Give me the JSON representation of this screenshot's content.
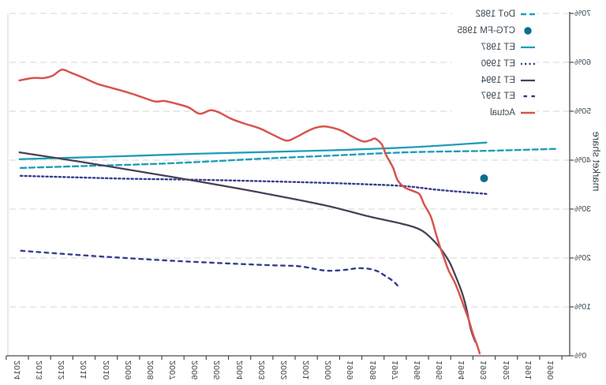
{
  "chart_data": {
    "type": "line",
    "title": "",
    "xlabel": "",
    "ylabel": "market share",
    "orientation": "horizontally-mirrored",
    "legend_position": "top-left",
    "grid": "horizontal-dashed",
    "xlim": [
      1989.1,
      2014.6
    ],
    "ylim": [
      0,
      70
    ],
    "x_ticks": [
      1990,
      1991,
      1992,
      1993,
      1994,
      1995,
      1996,
      1997,
      1998,
      1999,
      2000,
      2001,
      2002,
      2003,
      2004,
      2005,
      2006,
      2007,
      2008,
      2009,
      2010,
      2011,
      2012,
      2013,
      2014
    ],
    "y_ticks_pct": [
      0,
      10,
      20,
      30,
      40,
      50,
      60,
      70
    ],
    "y_tick_labels": [
      "0%",
      "10%",
      "20%",
      "30%",
      "40%",
      "50%",
      "60%",
      "70%"
    ],
    "axis_color": "#4a4a4a",
    "grid_color": "#D6D6D6",
    "text_color": "#3A4750",
    "series": [
      {
        "name": "DoT 1982",
        "color": "#1F9EB7",
        "style": "dashed",
        "dash": "7,4",
        "width": 2.4,
        "points": [
          [
            1989.8,
            42.3
          ],
          [
            1993,
            41.9
          ],
          [
            1996.5,
            41.6
          ],
          [
            2000,
            40.9
          ],
          [
            2003,
            40.3
          ],
          [
            2005.5,
            39.7
          ],
          [
            2008,
            39.2
          ],
          [
            2011,
            38.8
          ],
          [
            2013.9,
            38.4
          ]
        ]
      },
      {
        "name": "CTG-FM 1985",
        "color": "#0D6E8C",
        "style": "point",
        "width": 0,
        "points": [
          [
            1993.0,
            36.3
          ]
        ]
      },
      {
        "name": "ET 1987",
        "color": "#1F9EB7",
        "style": "solid",
        "dash": "",
        "width": 2.3,
        "points": [
          [
            1992.9,
            43.6
          ],
          [
            1996.0,
            42.7
          ],
          [
            2000,
            42.0
          ],
          [
            2006,
            41.3
          ],
          [
            2010,
            40.7
          ],
          [
            2013.9,
            40.2
          ]
        ]
      },
      {
        "name": "ET 1990",
        "color": "#363D8F",
        "style": "dotted",
        "dash": "2.2,3.2",
        "width": 2.4,
        "points": [
          [
            1992.9,
            33.1
          ],
          [
            1995.0,
            33.9
          ],
          [
            1996.6,
            34.7
          ],
          [
            1998.5,
            35.1
          ],
          [
            2000.5,
            35.4
          ],
          [
            2003,
            35.7
          ],
          [
            2006,
            36.0
          ],
          [
            2009,
            36.2
          ],
          [
            2011.5,
            36.5
          ],
          [
            2013.9,
            36.8
          ]
        ]
      },
      {
        "name": "ET 1994",
        "color": "#4A4158",
        "style": "solid",
        "dash": "",
        "width": 2.3,
        "points": [
          [
            1993.4,
            2.9
          ],
          [
            1993.6,
            5.5
          ],
          [
            1993.8,
            9.8
          ],
          [
            1994.0,
            13.0
          ],
          [
            1994.3,
            16.5
          ],
          [
            1994.6,
            19.5
          ],
          [
            1995.1,
            22.7
          ],
          [
            1995.8,
            25.6
          ],
          [
            1996.7,
            27.0
          ],
          [
            1998.1,
            28.4
          ],
          [
            2000.2,
            30.8
          ],
          [
            2003.1,
            33.4
          ],
          [
            2005.8,
            35.6
          ],
          [
            2008.4,
            37.6
          ],
          [
            2011.2,
            39.7
          ],
          [
            2013.9,
            41.6
          ]
        ]
      },
      {
        "name": "ET 1997",
        "color": "#363D8F",
        "style": "dashed",
        "dash": "4.5,5.5",
        "width": 2.4,
        "points": [
          [
            1996.9,
            14.4
          ],
          [
            1997.1,
            15.3
          ],
          [
            1997.5,
            16.5
          ],
          [
            1997.8,
            17.3
          ],
          [
            1998.2,
            17.8
          ],
          [
            1998.7,
            17.9
          ],
          [
            1999.2,
            17.6
          ],
          [
            1999.8,
            17.4
          ],
          [
            2000.3,
            17.5
          ],
          [
            2001.3,
            18.3
          ],
          [
            2002.5,
            18.5
          ],
          [
            2004.1,
            18.8
          ],
          [
            2006.0,
            19.2
          ],
          [
            2007.7,
            19.6
          ],
          [
            2009.5,
            20.1
          ],
          [
            2011.2,
            20.6
          ],
          [
            2013.9,
            21.5
          ]
        ]
      },
      {
        "name": "Actual",
        "color": "#D8544C",
        "style": "solid",
        "dash": "",
        "width": 2.5,
        "points": [
          [
            1993.2,
            0.5
          ],
          [
            1993.3,
            2.0
          ],
          [
            1993.5,
            4.5
          ],
          [
            1993.7,
            7.5
          ],
          [
            1993.9,
            10.0
          ],
          [
            1994.1,
            12.5
          ],
          [
            1994.3,
            14.8
          ],
          [
            1994.6,
            17.5
          ],
          [
            1994.8,
            20.0
          ],
          [
            1995.0,
            22.5
          ],
          [
            1995.2,
            25.5
          ],
          [
            1995.4,
            28.5
          ],
          [
            1995.7,
            31.0
          ],
          [
            1995.9,
            33.0
          ],
          [
            1996.2,
            33.7
          ],
          [
            1996.6,
            34.5
          ],
          [
            1996.9,
            36.0
          ],
          [
            1997.1,
            38.5
          ],
          [
            1997.4,
            41.0
          ],
          [
            1997.6,
            43.2
          ],
          [
            1997.9,
            44.4
          ],
          [
            1998.1,
            44.1
          ],
          [
            1998.4,
            43.8
          ],
          [
            1998.7,
            44.3
          ],
          [
            1999.0,
            45.0
          ],
          [
            1999.4,
            46.0
          ],
          [
            1999.8,
            46.6
          ],
          [
            2000.2,
            46.9
          ],
          [
            2000.6,
            46.6
          ],
          [
            2001.0,
            45.8
          ],
          [
            2001.5,
            44.6
          ],
          [
            2001.9,
            44.0
          ],
          [
            2002.5,
            45.2
          ],
          [
            2003.1,
            46.5
          ],
          [
            2003.8,
            47.5
          ],
          [
            2004.4,
            48.5
          ],
          [
            2004.9,
            49.7
          ],
          [
            2005.3,
            50.2
          ],
          [
            2005.8,
            49.5
          ],
          [
            2006.3,
            50.8
          ],
          [
            2006.9,
            51.6
          ],
          [
            2007.4,
            52.1
          ],
          [
            2007.8,
            52.0
          ],
          [
            2008.4,
            52.9
          ],
          [
            2009.0,
            53.8
          ],
          [
            2009.7,
            54.7
          ],
          [
            2010.4,
            55.6
          ],
          [
            2011.0,
            56.8
          ],
          [
            2011.6,
            57.9
          ],
          [
            2012.0,
            58.5
          ],
          [
            2012.4,
            57.3
          ],
          [
            2012.8,
            56.8
          ],
          [
            2013.3,
            56.8
          ],
          [
            2013.9,
            56.3
          ]
        ]
      }
    ],
    "legend_labels": [
      "DoT 1982",
      "CTG-FM 1985",
      "ET 1987",
      "ET 1990",
      "ET 1994",
      "ET 1997",
      "Actual"
    ]
  }
}
